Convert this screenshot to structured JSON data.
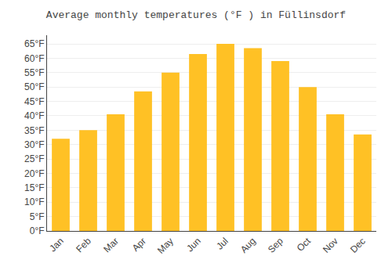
{
  "chart_data": {
    "type": "bar",
    "title": "Average monthly temperatures (°F ) in Füllinsdorf",
    "categories": [
      "Jan",
      "Feb",
      "Mar",
      "Apr",
      "May",
      "Jun",
      "Jul",
      "Aug",
      "Sep",
      "Oct",
      "Nov",
      "Dec"
    ],
    "values": [
      32,
      35,
      40.5,
      48.5,
      55,
      61.5,
      65,
      63.5,
      59,
      50,
      40.5,
      33.5
    ],
    "color": "#FFC125",
    "ylim": [
      0,
      68
    ],
    "yticks": [
      {
        "value": 0,
        "label": "0°F"
      },
      {
        "value": 5,
        "label": "5°F"
      },
      {
        "value": 10,
        "label": "10°F"
      },
      {
        "value": 15,
        "label": "15°F"
      },
      {
        "value": 20,
        "label": "20°F"
      },
      {
        "value": 25,
        "label": "25°F"
      },
      {
        "value": 30,
        "label": "30°F"
      },
      {
        "value": 35,
        "label": "35°F"
      },
      {
        "value": 40,
        "label": "40°F"
      },
      {
        "value": 45,
        "label": "45°F"
      },
      {
        "value": 50,
        "label": "50°F"
      },
      {
        "value": 55,
        "label": "55°F"
      },
      {
        "value": 60,
        "label": "60°F"
      },
      {
        "value": 65,
        "label": "65°F"
      }
    ],
    "grid": true
  }
}
